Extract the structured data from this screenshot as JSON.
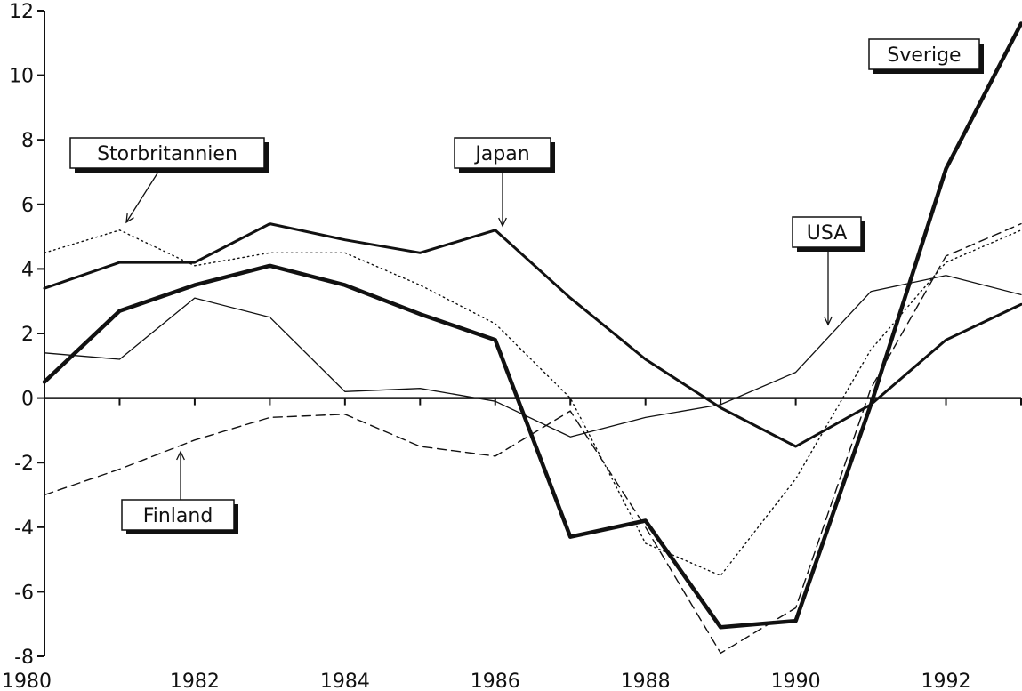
{
  "chart_data": {
    "type": "line",
    "title": "",
    "xlabel": "",
    "ylabel": "",
    "xlim": [
      1980,
      1993
    ],
    "ylim": [
      -8,
      12
    ],
    "x_ticks": [
      "1980",
      "1982",
      "1984",
      "1986",
      "1988",
      "1990",
      "1992"
    ],
    "y_ticks": [
      "12",
      "10",
      "8",
      "6",
      "4",
      "2",
      "0",
      "-2",
      "-4",
      "-6",
      "-8"
    ],
    "grid": false,
    "x": [
      1980,
      1981,
      1982,
      1983,
      1984,
      1985,
      1986,
      1987,
      1988,
      1989,
      1990,
      1991,
      1992,
      1993
    ],
    "series": [
      {
        "name": "Sverige",
        "style": "thick-solid",
        "values": [
          0.5,
          2.7,
          3.5,
          4.1,
          3.5,
          2.6,
          1.8,
          -4.3,
          -3.8,
          -7.1,
          -6.9,
          -0.2,
          7.1,
          11.6
        ]
      },
      {
        "name": "Japan",
        "style": "medium-solid",
        "values": [
          3.4,
          4.2,
          4.2,
          5.4,
          4.9,
          4.5,
          5.2,
          3.1,
          1.2,
          -0.3,
          -1.5,
          -0.2,
          1.8,
          2.9
        ]
      },
      {
        "name": "USA",
        "style": "thin-solid",
        "values": [
          1.4,
          1.2,
          3.1,
          2.5,
          0.2,
          0.3,
          -0.1,
          -1.2,
          -0.6,
          -0.2,
          0.8,
          3.3,
          3.8,
          3.2
        ]
      },
      {
        "name": "Storbritannien",
        "style": "dotted",
        "values": [
          4.5,
          5.2,
          4.1,
          4.5,
          4.5,
          3.5,
          2.3,
          0.0,
          -4.5,
          -5.5,
          -2.5,
          1.5,
          4.2,
          5.2
        ]
      },
      {
        "name": "Finland",
        "style": "dashed",
        "values": [
          -3.0,
          -2.2,
          -1.3,
          -0.6,
          -0.5,
          -1.5,
          -1.8,
          -0.4,
          -4.0,
          -7.9,
          -6.5,
          0.3,
          4.4,
          5.4
        ]
      }
    ],
    "annotations": [
      {
        "label": "Storbritannien",
        "series": "Storbritannien"
      },
      {
        "label": "Japan",
        "series": "Japan"
      },
      {
        "label": "Sverige",
        "series": "Sverige"
      },
      {
        "label": "USA",
        "series": "USA"
      },
      {
        "label": "Finland",
        "series": "Finland"
      }
    ]
  }
}
